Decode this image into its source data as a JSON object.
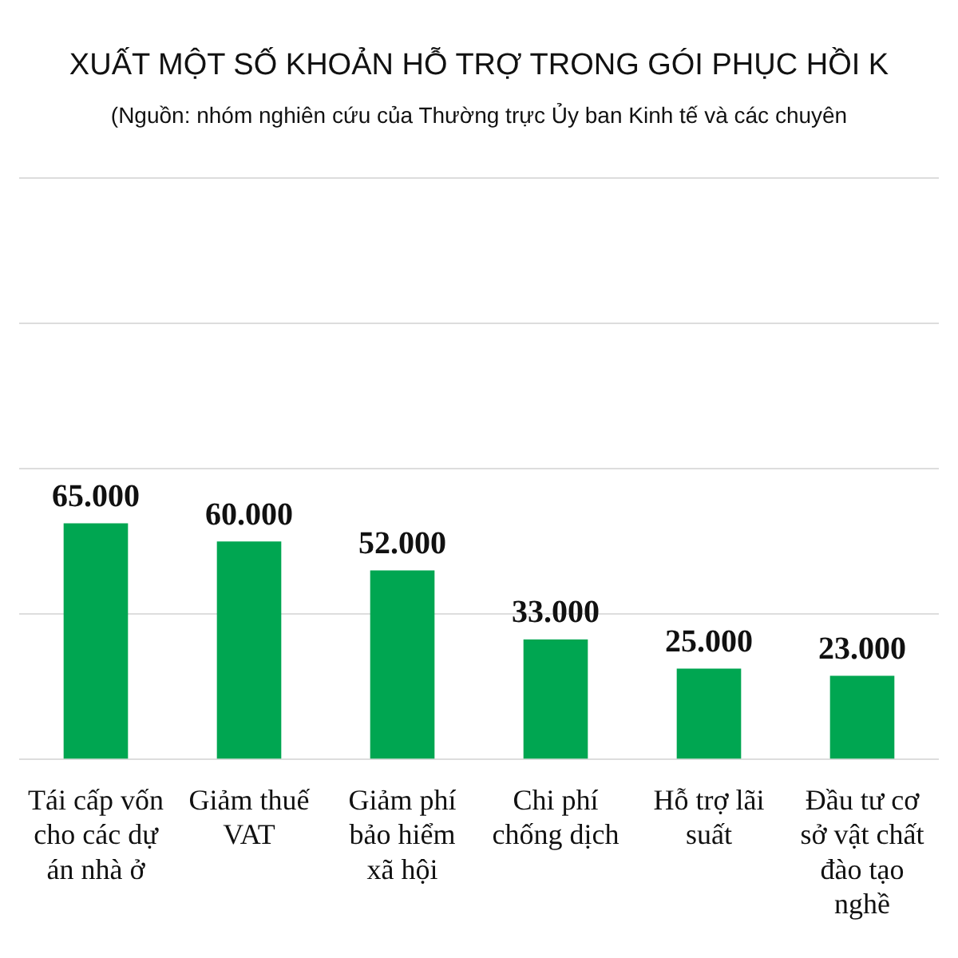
{
  "chart_data": {
    "type": "bar",
    "title": "XUẤT MỘT SỐ KHOẢN HỖ TRỢ TRONG GÓI PHỤC HỒI K",
    "subtitle": "(Nguồn: nhóm nghiên cứu của Thường trực Ủy ban Kinh tế và các chuyên",
    "categories": [
      "Tái cấp vốn cho các dự án nhà ở",
      "Giảm thuế VAT",
      "Giảm phí bảo hiểm xã hội",
      "Chi phí chống dịch",
      "Hỗ trợ lãi suất",
      "Đầu tư cơ sở vật chất đào tạo nghề"
    ],
    "values": [
      65000,
      60000,
      52000,
      33000,
      25000,
      23000
    ],
    "value_labels": [
      "65.000",
      "60.000",
      "52.000",
      "33.000",
      "25.000",
      "23.000"
    ],
    "color": "#00a651",
    "ylim": [
      0,
      160000
    ],
    "yticks": [
      {
        "value": 0,
        "label": null
      },
      {
        "value": 40000,
        "label": null
      },
      {
        "value": 80000,
        "label": null
      },
      {
        "value": 120000,
        "label": null
      },
      {
        "value": 160000,
        "label": null
      }
    ],
    "grid": "y",
    "tick_labels": "x"
  }
}
